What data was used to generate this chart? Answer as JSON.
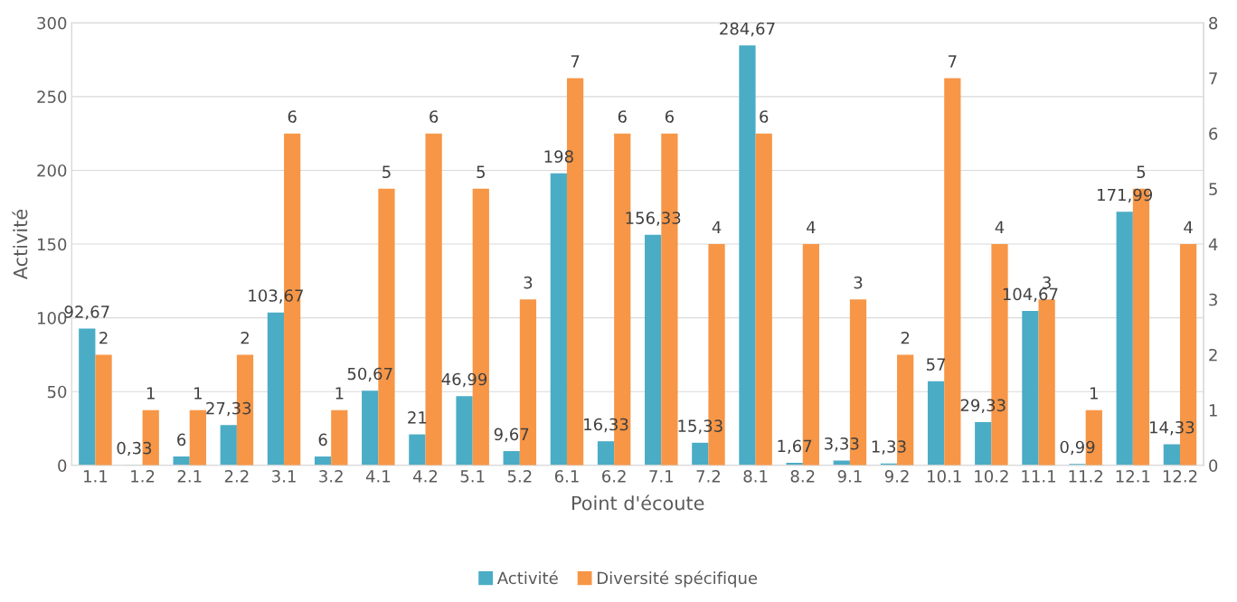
{
  "chart_data": {
    "type": "bar",
    "xlabel": "Point d'écoute",
    "ylabel": "Activité",
    "categories": [
      "1.1",
      "1.2",
      "2.1",
      "2.2",
      "3.1",
      "3.2",
      "4.1",
      "4.2",
      "5.1",
      "5.2",
      "6.1",
      "6.2",
      "7.1",
      "7.2",
      "8.1",
      "8.2",
      "9.1",
      "9.2",
      "10.1",
      "10.2",
      "11.1",
      "11.2",
      "12.1",
      "12.2"
    ],
    "series": [
      {
        "name": "Activité",
        "color": "#4bacc6",
        "values": [
          92.67,
          0.33,
          6,
          27.33,
          103.67,
          6,
          50.67,
          21,
          46.99,
          9.67,
          198,
          16.33,
          156.33,
          15.33,
          284.67,
          1.67,
          3.33,
          1.33,
          57,
          29.33,
          104.67,
          0.99,
          171.99,
          14.33
        ],
        "value_labels": [
          "92,67",
          "0,33",
          "6",
          "27,33",
          "103,67",
          "6",
          "50,67",
          "21",
          "46,99",
          "9,67",
          "198",
          "16,33",
          "156,33",
          "15,33",
          "284,67",
          "1,67",
          "3,33",
          "1,33",
          "57",
          "29,33",
          "104,67",
          "0,99",
          "171,99",
          "14,33"
        ]
      },
      {
        "name": "Diversité spécifique",
        "color": "#f79646",
        "axis": "y2",
        "values": [
          2,
          1,
          1,
          2,
          6,
          1,
          5,
          6,
          5,
          3,
          7,
          6,
          6,
          4,
          6,
          4,
          3,
          2,
          7,
          4,
          3,
          1,
          5,
          4
        ],
        "value_labels": [
          "2",
          "1",
          "1",
          "2",
          "6",
          "1",
          "5",
          "6",
          "5",
          "3",
          "7",
          "6",
          "6",
          "4",
          "6",
          "4",
          "3",
          "2",
          "7",
          "4",
          "3",
          "1",
          "5",
          "4"
        ]
      }
    ],
    "ylim": [
      0,
      300
    ],
    "yticks": [
      0,
      50,
      100,
      150,
      200,
      250,
      300
    ],
    "y2lim": [
      0,
      8
    ],
    "y2ticks": [
      0,
      1,
      2,
      3,
      4,
      5,
      6,
      7,
      8
    ],
    "grid": "y",
    "legend": "bottom"
  }
}
